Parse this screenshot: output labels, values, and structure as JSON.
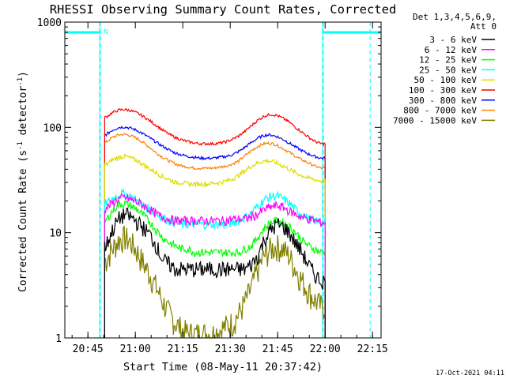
{
  "chart_data": {
    "type": "line",
    "title": "RHESSI Observing Summary Count Rates, Corrected",
    "xlabel": "Start Time (08-May-11 20:37:42)",
    "ylabel_main": "Corrected Count Rate (s",
    "ylabel_exp1": "-1",
    "ylabel_mid": " detector",
    "ylabel_exp2": "-1",
    "ylabel_end": ")",
    "yscale": "log",
    "ylim": [
      1,
      1000
    ],
    "x_unit": "minutes after 20:37:42",
    "xlim": [
      0,
      100
    ],
    "x_ticks": [
      {
        "label": "20:45",
        "t": 7.3
      },
      {
        "label": "21:00",
        "t": 22.3
      },
      {
        "label": "21:15",
        "t": 37.3
      },
      {
        "label": "21:30",
        "t": 52.3
      },
      {
        "label": "21:45",
        "t": 67.3
      },
      {
        "label": "22:00",
        "t": 82.3
      },
      {
        "label": "22:15",
        "t": 97.3
      }
    ],
    "y_ticks": [
      {
        "label": "1",
        "v": 1
      },
      {
        "label": "10",
        "v": 10
      },
      {
        "label": "100",
        "v": 100
      },
      {
        "label": "1000",
        "v": 1000
      }
    ],
    "legend_header": [
      "Det 1,3,4,5,6,9,",
      "Att 0"
    ],
    "legend_position": "right",
    "data_start": 12.6,
    "data_end": 82.3,
    "sample_times": [
      13,
      15,
      17,
      19,
      21,
      23,
      25,
      27,
      29,
      31,
      33,
      35,
      37,
      39,
      41,
      43,
      45,
      47,
      49,
      51,
      53,
      55,
      57,
      59,
      61,
      63,
      65,
      67,
      69,
      71,
      73,
      75,
      77,
      79,
      81
    ],
    "series": [
      {
        "name": "3 - 6 keV",
        "color": "#000000",
        "values": [
          7.5,
          10.5,
          13.5,
          15,
          14,
          12.5,
          11,
          9.5,
          7.5,
          5.5,
          5,
          4.5,
          4.5,
          4.5,
          4.5,
          4.5,
          4.5,
          4.5,
          4.5,
          4.5,
          4.5,
          4.5,
          4.5,
          5,
          6,
          8.5,
          10.5,
          12,
          11.5,
          10,
          8,
          6.5,
          5,
          4,
          3.5
        ]
      },
      {
        "name": "6 - 12 keV",
        "color": "#ff00ff",
        "values": [
          17,
          19,
          21,
          21.5,
          20.5,
          19.5,
          18,
          16.5,
          15,
          14,
          13.5,
          13,
          13,
          13,
          13,
          13,
          13,
          13,
          13,
          13,
          13.5,
          13.5,
          13.5,
          14,
          15,
          16.5,
          17.5,
          18,
          17.5,
          16,
          15,
          14,
          13.5,
          13,
          12.5
        ]
      },
      {
        "name": "12 - 25 keV",
        "color": "#00ff00",
        "values": [
          13,
          16,
          18.5,
          19,
          18,
          16.5,
          14.5,
          12.5,
          10.5,
          9,
          8,
          7.5,
          7,
          7,
          6.5,
          6.5,
          6.5,
          6.5,
          6.5,
          6.5,
          6.5,
          6.5,
          7,
          7.5,
          9,
          11,
          12.5,
          13,
          12.5,
          11.5,
          10,
          8.5,
          7.5,
          7,
          6.5
        ]
      },
      {
        "name": "25 - 50 keV",
        "color": "#00ffff",
        "values": [
          19,
          21,
          23,
          23.5,
          22,
          20,
          18,
          16.5,
          15,
          14,
          13,
          12.5,
          12,
          12,
          12,
          12,
          12,
          12,
          12,
          12,
          12.5,
          13,
          14,
          15.5,
          18,
          20.5,
          22,
          22.5,
          21,
          19,
          16.5,
          15,
          13.5,
          13,
          12.5
        ]
      },
      {
        "name": "50 - 100 keV",
        "color": "#dddd00",
        "values": [
          44,
          49,
          52,
          53,
          51,
          48,
          44,
          40,
          37,
          34,
          32,
          30,
          30,
          29,
          29,
          29,
          29,
          29.5,
          30,
          31,
          32.5,
          35,
          39,
          43,
          46,
          48,
          48,
          46,
          43,
          40,
          37,
          35,
          33,
          32,
          31
        ]
      },
      {
        "name": "100 - 300 keV",
        "color": "#ff0000",
        "values": [
          125,
          138,
          146,
          148,
          144,
          136,
          126,
          115,
          104,
          94,
          86,
          80,
          76,
          73,
          71,
          70,
          70,
          70,
          71,
          73,
          77,
          83,
          92,
          104,
          117,
          128,
          133,
          130,
          122,
          112,
          100,
          90,
          81,
          74,
          70
        ]
      },
      {
        "name": "300 - 800 keV",
        "color": "#0000ff",
        "values": [
          85,
          94,
          100,
          101,
          98,
          93,
          86,
          79,
          72,
          66,
          61,
          57,
          55,
          53,
          52,
          51,
          51,
          51,
          52,
          53,
          55,
          59,
          65,
          72,
          79,
          84,
          85,
          82,
          77,
          71,
          65,
          60,
          56,
          53,
          51
        ]
      },
      {
        "name": "800 - 7000 keV",
        "color": "#ff8000",
        "values": [
          72,
          80,
          85,
          86,
          83,
          78,
          71,
          64,
          57,
          52,
          48,
          45,
          43,
          42,
          41,
          41,
          41,
          41,
          42,
          43,
          45,
          48,
          54,
          60,
          66,
          70,
          71,
          68,
          63,
          58,
          53,
          49,
          46,
          43,
          41
        ]
      },
      {
        "name": "7000 - 15000 keV",
        "color": "#808000",
        "values": [
          5.5,
          7,
          8.5,
          9,
          8,
          6.5,
          5,
          4,
          3,
          2.2,
          1.7,
          1.4,
          1.2,
          1.1,
          1.1,
          1.1,
          1.1,
          1.1,
          1.2,
          1.3,
          1.4,
          1.7,
          2.2,
          3,
          4.5,
          6,
          7,
          7.5,
          7,
          6,
          4.5,
          3.5,
          2.8,
          2.3,
          2
        ]
      }
    ],
    "night_intervals": [
      {
        "start": 0,
        "end": 11.0
      },
      {
        "start": 81.5,
        "end": 100
      }
    ],
    "saa_markers": [
      11.0,
      81.5,
      96.3
    ],
    "annotation_label": "N"
  },
  "footer_date": "17-Oct-2021 04:11"
}
